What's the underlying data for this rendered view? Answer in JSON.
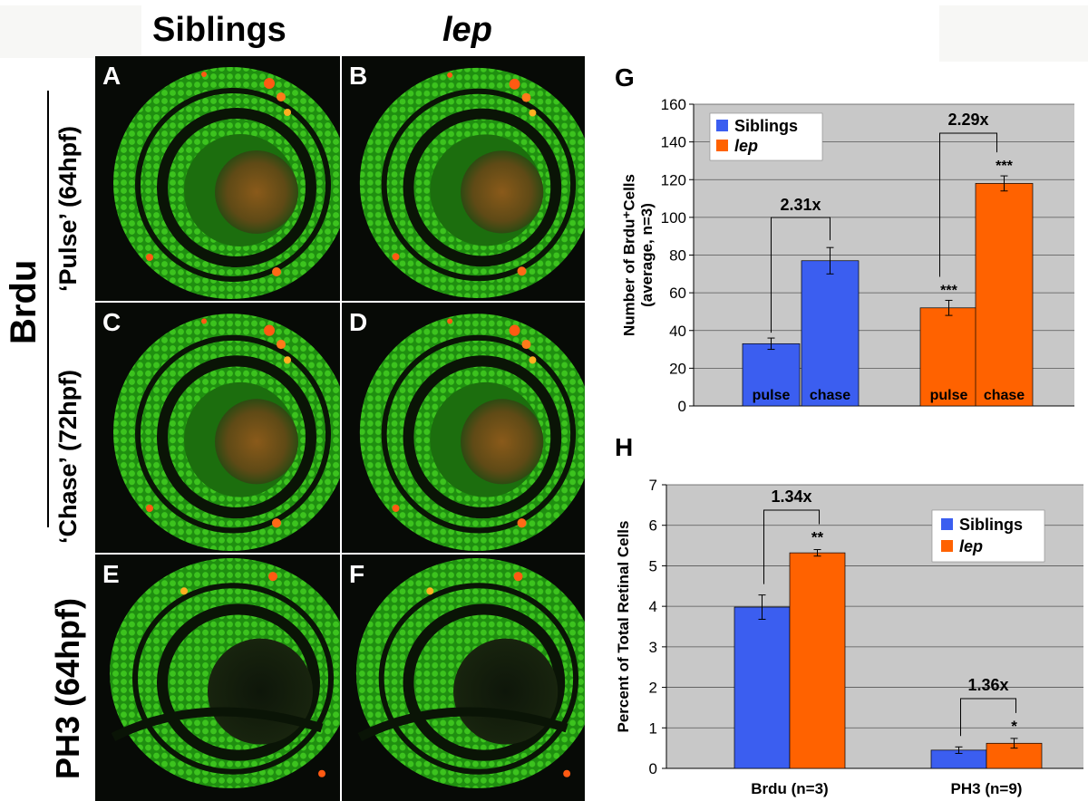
{
  "headers": {
    "siblings": "Siblings",
    "lep": "lep"
  },
  "row_labels": {
    "brdu": "Brdu",
    "pulse": "‘Pulse’ (64hpf)",
    "chase": "‘Chase’ (72hpf)",
    "ph3": "PH3 (64hpf)"
  },
  "panels": [
    {
      "letter": "A"
    },
    {
      "letter": "B"
    },
    {
      "letter": "C"
    },
    {
      "letter": "D"
    },
    {
      "letter": "E"
    },
    {
      "letter": "F"
    }
  ],
  "colors": {
    "siblings": "#3b5ef0",
    "lep": "#ff6200",
    "plot_bg": "#c8c8c8",
    "stain_green": "#2fae17",
    "stain_red": "#ff4a10"
  },
  "chart_data": [
    {
      "panel": "G",
      "type": "bar",
      "ylabel_line1": "Number of Brdu⁺Cells",
      "ylabel_line2": "(average, n=3)",
      "ylim": [
        0,
        160
      ],
      "yticks": [
        0,
        20,
        40,
        60,
        80,
        100,
        120,
        140,
        160
      ],
      "legend": [
        "Siblings",
        "lep"
      ],
      "legend_position": "top-left",
      "grid": true,
      "bars": [
        {
          "series": "Siblings",
          "label": "pulse",
          "value": 33,
          "error": 3
        },
        {
          "series": "Siblings",
          "label": "chase",
          "value": 77,
          "error": 7
        },
        {
          "series": "lep",
          "label": "pulse",
          "value": 52,
          "error": 4,
          "stars": "***"
        },
        {
          "series": "lep",
          "label": "chase",
          "value": 118,
          "error": 4,
          "stars": "***"
        }
      ],
      "brackets": [
        {
          "from": 0,
          "to": 1,
          "label": "2.31x"
        },
        {
          "from": 2,
          "to": 3,
          "label": "2.29x"
        }
      ]
    },
    {
      "panel": "H",
      "type": "bar",
      "ylabel": "Percent of Total Retinal Cells",
      "ylim": [
        0,
        7
      ],
      "yticks": [
        0,
        1,
        2,
        3,
        4,
        5,
        6,
        7
      ],
      "categories": [
        "Brdu (n=3)",
        "PH3 (n=9)"
      ],
      "legend": [
        "Siblings",
        "lep"
      ],
      "legend_position": "top-right",
      "grid": true,
      "series": [
        {
          "name": "Siblings",
          "values": [
            3.98,
            0.45
          ],
          "errors": [
            0.3,
            0.08
          ]
        },
        {
          "name": "lep",
          "values": [
            5.32,
            0.62
          ],
          "errors": [
            0.08,
            0.12
          ],
          "stars": [
            "**",
            "*"
          ]
        }
      ],
      "brackets": [
        {
          "category": 0,
          "label": "1.34x"
        },
        {
          "category": 1,
          "label": "1.36x"
        }
      ]
    }
  ]
}
